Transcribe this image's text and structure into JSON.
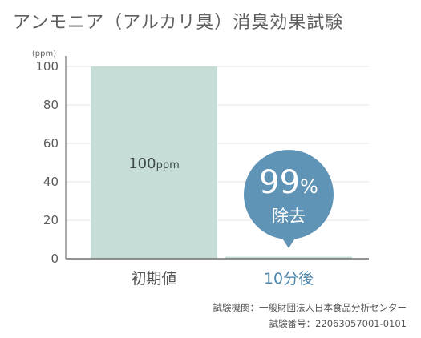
{
  "title": "アンモニア（アルカリ臭）消臭効果試験",
  "chart_data": {
    "type": "bar",
    "title": "アンモニア（アルカリ臭）消臭効果試験",
    "ylabel": "(ppm)",
    "xlabel": "",
    "categories": [
      "初期値",
      "10分後"
    ],
    "values": [
      100,
      1
    ],
    "ylim": [
      0,
      100
    ],
    "yticks": [
      0,
      20,
      40,
      60,
      80,
      100
    ],
    "bar_labels": [
      {
        "number": "100",
        "unit": "ppm"
      },
      null
    ],
    "callout": {
      "big": "99",
      "pct": "%",
      "small": "除去"
    },
    "grid": true,
    "colors": {
      "bar": "#c6ddd7",
      "bubble": "#5f94b6",
      "category_initial": "#555555",
      "category_after": "#4f88ad",
      "grid": "#e3e3e3",
      "axis": "#555555"
    }
  },
  "footnote": {
    "line1": "試験機関：一般財団法人日本食品分析センター",
    "line2": "試験番号：22063057001-0101"
  }
}
